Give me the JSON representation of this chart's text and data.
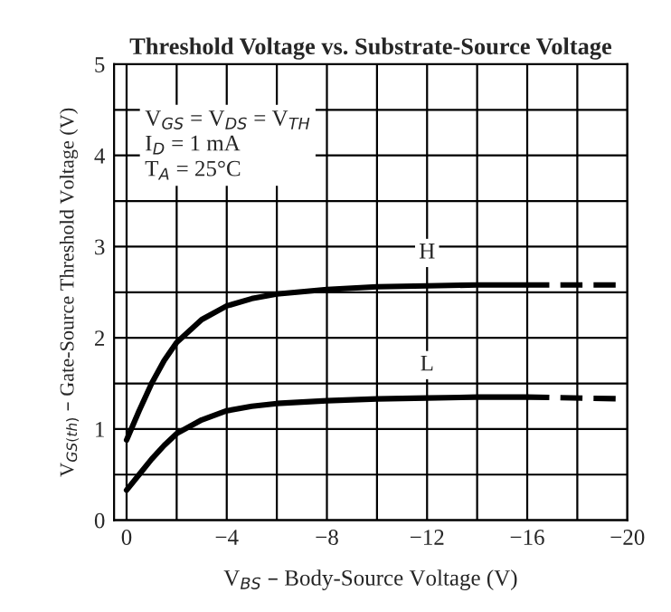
{
  "chart_data": {
    "type": "line",
    "title": "Threshold Voltage vs. Substrate-Source Voltage",
    "xlabel": "V$_{BS}$ – Body-Source Voltage (V)",
    "ylabel": "V$_{GS(th)}$ – Gate-Source Threshold Voltage (V)",
    "annotations": [
      "V$_{GS}$ = V$_{DS}$ = V$_{TH}$",
      "I$_{D}$ = 1 mA",
      "T$_{A}$ = 25°C"
    ],
    "xlim": [
      0.5,
      -20
    ],
    "ylim": [
      0,
      5
    ],
    "xticks": [
      0,
      {
        "value": -2,
        "label": null
      },
      {
        "value": -4,
        "label": "−4"
      },
      {
        "value": -6,
        "label": null
      },
      {
        "value": -8,
        "label": "−8"
      },
      {
        "value": -10,
        "label": null
      },
      {
        "value": -12,
        "label": "−12"
      },
      {
        "value": -14,
        "label": null
      },
      {
        "value": -16,
        "label": "−16"
      },
      {
        "value": -18,
        "label": null
      },
      {
        "value": -20,
        "label": "−20"
      }
    ],
    "yticks": [
      0,
      {
        "value": 0.5,
        "label": null
      },
      1,
      {
        "value": 1.5,
        "label": null
      },
      2,
      {
        "value": 2.5,
        "label": null
      },
      3,
      {
        "value": 3.5,
        "label": null
      },
      4,
      {
        "value": 4.5,
        "label": null
      },
      5
    ],
    "grid": true,
    "legend": false,
    "series": [
      {
        "name": "H",
        "color": "#000000",
        "line_style": "solid",
        "x": [
          0,
          -0.5,
          -1,
          -1.5,
          -2,
          -3,
          -4,
          -5,
          -6,
          -8,
          -10,
          -12,
          -14,
          -16
        ],
        "values": [
          0.88,
          1.2,
          1.5,
          1.75,
          1.95,
          2.2,
          2.35,
          2.43,
          2.48,
          2.53,
          2.56,
          2.57,
          2.58,
          2.58
        ]
      },
      {
        "color": "#000000",
        "line_style": "dashed",
        "x": [
          -16,
          -20
        ],
        "values": [
          2.58,
          2.58
        ]
      },
      {
        "name": "L",
        "color": "#000000",
        "line_style": "solid",
        "x": [
          0,
          -0.5,
          -1,
          -1.5,
          -2,
          -3,
          -4,
          -5,
          -6,
          -8,
          -10,
          -12,
          -14,
          -16
        ],
        "values": [
          0.33,
          0.5,
          0.67,
          0.82,
          0.95,
          1.1,
          1.2,
          1.25,
          1.28,
          1.31,
          1.33,
          1.34,
          1.35,
          1.35
        ]
      },
      {
        "color": "#000000",
        "line_style": "dashed",
        "x": [
          -16,
          -20
        ],
        "values": [
          1.35,
          1.33
        ]
      }
    ]
  }
}
